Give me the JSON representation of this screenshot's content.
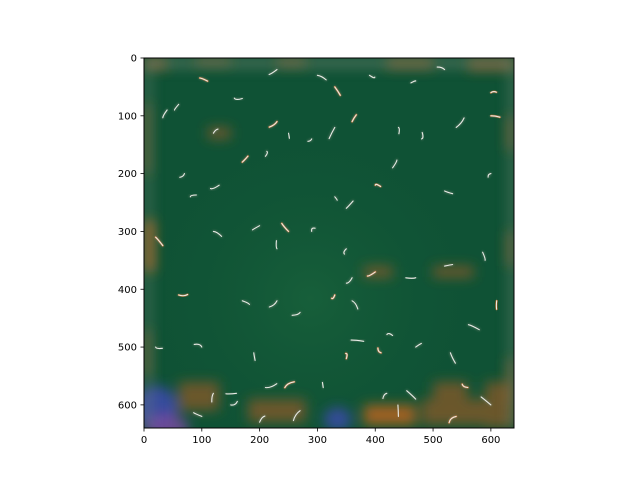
{
  "chart_data": {
    "type": "heatmap",
    "subtype": "image",
    "title": "",
    "xlabel": "",
    "ylabel": "",
    "xlim": [
      0,
      640
    ],
    "ylim": [
      640,
      0
    ],
    "y_axis_inverted": true,
    "x_ticks": [
      0,
      100,
      200,
      300,
      400,
      500,
      600
    ],
    "y_ticks": [
      0,
      100,
      200,
      300,
      400,
      500,
      600
    ],
    "grid": false,
    "legend": "none",
    "image_description": "stylized noisy image: dominant dark green field with scattered white and orange brush-stroke artifacts, brown/orange blotches along the edges, bluish-purple patches near bottom-left and bottom-center",
    "colors": {
      "dominant": "#0f5235",
      "mid_green": "#155c3a",
      "edge_brown": "#8a5a2a",
      "accent_orange": "#d0651a",
      "stroke_white": "#f2f2ee",
      "blue_patch": "#3a4aa8",
      "purple_patch": "#7a4aa0",
      "gray_stroke": "#7a8a78"
    }
  }
}
